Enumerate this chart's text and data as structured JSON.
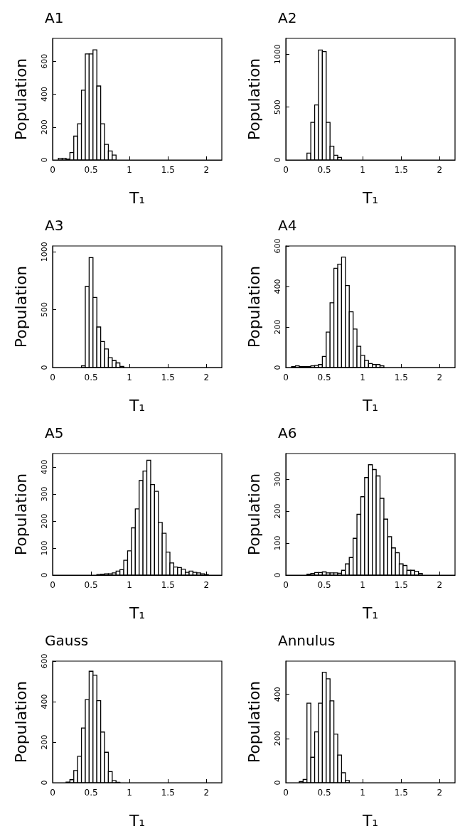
{
  "chart_data": [
    {
      "type": "histogram",
      "title": "A1",
      "xlabel": "T₁",
      "ylabel": "Population",
      "color": "#000000",
      "xlim": [
        0,
        2.2
      ],
      "xticks": [
        0,
        0.5,
        1,
        1.5,
        2
      ],
      "ylim": [
        0,
        740
      ],
      "yticks": [
        0,
        200,
        400,
        600
      ],
      "grid": false,
      "bins": [
        0.075,
        0.125,
        0.175,
        0.225,
        0.275,
        0.325,
        0.375,
        0.425,
        0.475,
        0.525,
        0.575,
        0.625,
        0.675,
        0.725,
        0.775,
        0.825
      ],
      "values": [
        10,
        10,
        5,
        45,
        145,
        220,
        425,
        645,
        645,
        670,
        450,
        220,
        95,
        55,
        30
      ]
    },
    {
      "type": "histogram",
      "title": "A2",
      "xlabel": "T₁",
      "ylabel": "Population",
      "color": "#000000",
      "xlim": [
        0,
        2.2
      ],
      "xticks": [
        0,
        0.5,
        1,
        1.5,
        2
      ],
      "ylim": [
        0,
        1150
      ],
      "yticks": [
        0,
        500,
        1000
      ],
      "grid": false,
      "bins": [
        0.275,
        0.325,
        0.375,
        0.425,
        0.475,
        0.525,
        0.575,
        0.625,
        0.675,
        0.725
      ],
      "values": [
        65,
        355,
        520,
        1040,
        1025,
        355,
        130,
        45,
        25
      ]
    },
    {
      "type": "histogram",
      "title": "A3",
      "xlabel": "T₁",
      "ylabel": "Population",
      "color": "#000000",
      "xlim": [
        0,
        2.2
      ],
      "xticks": [
        0,
        0.5,
        1,
        1.5,
        2
      ],
      "ylim": [
        0,
        1050
      ],
      "yticks": [
        0,
        500,
        1000
      ],
      "grid": false,
      "bins": [
        0.375,
        0.425,
        0.475,
        0.525,
        0.575,
        0.625,
        0.675,
        0.725,
        0.775,
        0.825,
        0.875,
        0.925
      ],
      "values": [
        15,
        700,
        950,
        605,
        350,
        225,
        160,
        85,
        60,
        40,
        10
      ]
    },
    {
      "type": "histogram",
      "title": "A4",
      "xlabel": "T₁",
      "ylabel": "Population",
      "color": "#000000",
      "xlim": [
        0,
        2.2
      ],
      "xticks": [
        0,
        0.5,
        1,
        1.5,
        2
      ],
      "ylim": [
        0,
        600
      ],
      "yticks": [
        0,
        200,
        400,
        600
      ],
      "grid": false,
      "bins": [
        0.075,
        0.125,
        0.175,
        0.225,
        0.275,
        0.325,
        0.375,
        0.425,
        0.475,
        0.525,
        0.575,
        0.625,
        0.675,
        0.725,
        0.775,
        0.825,
        0.875,
        0.925,
        0.975,
        1.025,
        1.075,
        1.125,
        1.175,
        1.225,
        1.275
      ],
      "values": [
        5,
        8,
        5,
        5,
        5,
        8,
        10,
        15,
        55,
        175,
        320,
        490,
        510,
        545,
        405,
        275,
        190,
        105,
        60,
        35,
        20,
        15,
        15,
        8
      ]
    },
    {
      "type": "histogram",
      "title": "A5",
      "xlabel": "T₁",
      "ylabel": "Population",
      "color": "#000000",
      "xlim": [
        0,
        2.2
      ],
      "xticks": [
        0,
        0.5,
        1,
        1.5,
        2
      ],
      "ylim": [
        0,
        450
      ],
      "yticks": [
        0,
        100,
        200,
        300,
        400
      ],
      "grid": false,
      "bins": [
        0.575,
        0.625,
        0.675,
        0.725,
        0.775,
        0.825,
        0.875,
        0.925,
        0.975,
        1.025,
        1.075,
        1.125,
        1.175,
        1.225,
        1.275,
        1.325,
        1.375,
        1.425,
        1.475,
        1.525,
        1.575,
        1.625,
        1.675,
        1.725,
        1.775,
        1.825,
        1.875,
        1.925,
        1.975,
        2.025
      ],
      "values": [
        2,
        3,
        5,
        5,
        8,
        15,
        20,
        55,
        90,
        175,
        245,
        350,
        385,
        425,
        335,
        310,
        195,
        155,
        85,
        45,
        30,
        28,
        22,
        10,
        15,
        10,
        8,
        5,
        2
      ]
    },
    {
      "type": "histogram",
      "title": "A6",
      "xlabel": "T₁",
      "ylabel": "Population",
      "color": "#000000",
      "xlim": [
        0,
        2.2
      ],
      "xticks": [
        0,
        0.5,
        1,
        1.5,
        2
      ],
      "ylim": [
        0,
        380
      ],
      "yticks": [
        0,
        100,
        200,
        300
      ],
      "grid": false,
      "bins": [
        0.275,
        0.325,
        0.375,
        0.425,
        0.475,
        0.525,
        0.575,
        0.625,
        0.675,
        0.725,
        0.775,
        0.825,
        0.875,
        0.925,
        0.975,
        1.025,
        1.075,
        1.125,
        1.175,
        1.225,
        1.275,
        1.325,
        1.375,
        1.425,
        1.475,
        1.525,
        1.575,
        1.625,
        1.675,
        1.725,
        1.775
      ],
      "values": [
        3,
        5,
        8,
        8,
        10,
        7,
        7,
        7,
        6,
        15,
        35,
        55,
        115,
        190,
        245,
        305,
        345,
        330,
        310,
        240,
        175,
        120,
        85,
        70,
        35,
        30,
        15,
        15,
        12,
        5
      ]
    },
    {
      "type": "histogram",
      "title": "Gauss",
      "xlabel": "T₁",
      "ylabel": "Population",
      "color": "#000000",
      "xlim": [
        0,
        2.2
      ],
      "xticks": [
        0,
        0.5,
        1,
        1.5,
        2
      ],
      "ylim": [
        0,
        600
      ],
      "yticks": [
        0,
        200,
        400,
        600
      ],
      "grid": false,
      "bins": [
        0.175,
        0.225,
        0.275,
        0.325,
        0.375,
        0.425,
        0.475,
        0.525,
        0.575,
        0.625,
        0.675,
        0.725,
        0.775,
        0.825,
        0.875
      ],
      "values": [
        3,
        15,
        60,
        130,
        270,
        410,
        550,
        530,
        405,
        250,
        150,
        55,
        10,
        2
      ]
    },
    {
      "type": "histogram",
      "title": "Annulus",
      "xlabel": "T₁",
      "ylabel": "Population",
      "color": "#000000",
      "xlim": [
        0,
        2.2
      ],
      "xticks": [
        0,
        0.5,
        1,
        1.5,
        2
      ],
      "ylim": [
        0,
        550
      ],
      "yticks": [
        0,
        200,
        400
      ],
      "grid": false,
      "bins": [
        0.175,
        0.225,
        0.275,
        0.325,
        0.375,
        0.425,
        0.475,
        0.525,
        0.575,
        0.625,
        0.675,
        0.725,
        0.775,
        0.825
      ],
      "values": [
        5,
        15,
        360,
        115,
        230,
        360,
        500,
        470,
        370,
        220,
        125,
        45,
        10
      ]
    }
  ]
}
